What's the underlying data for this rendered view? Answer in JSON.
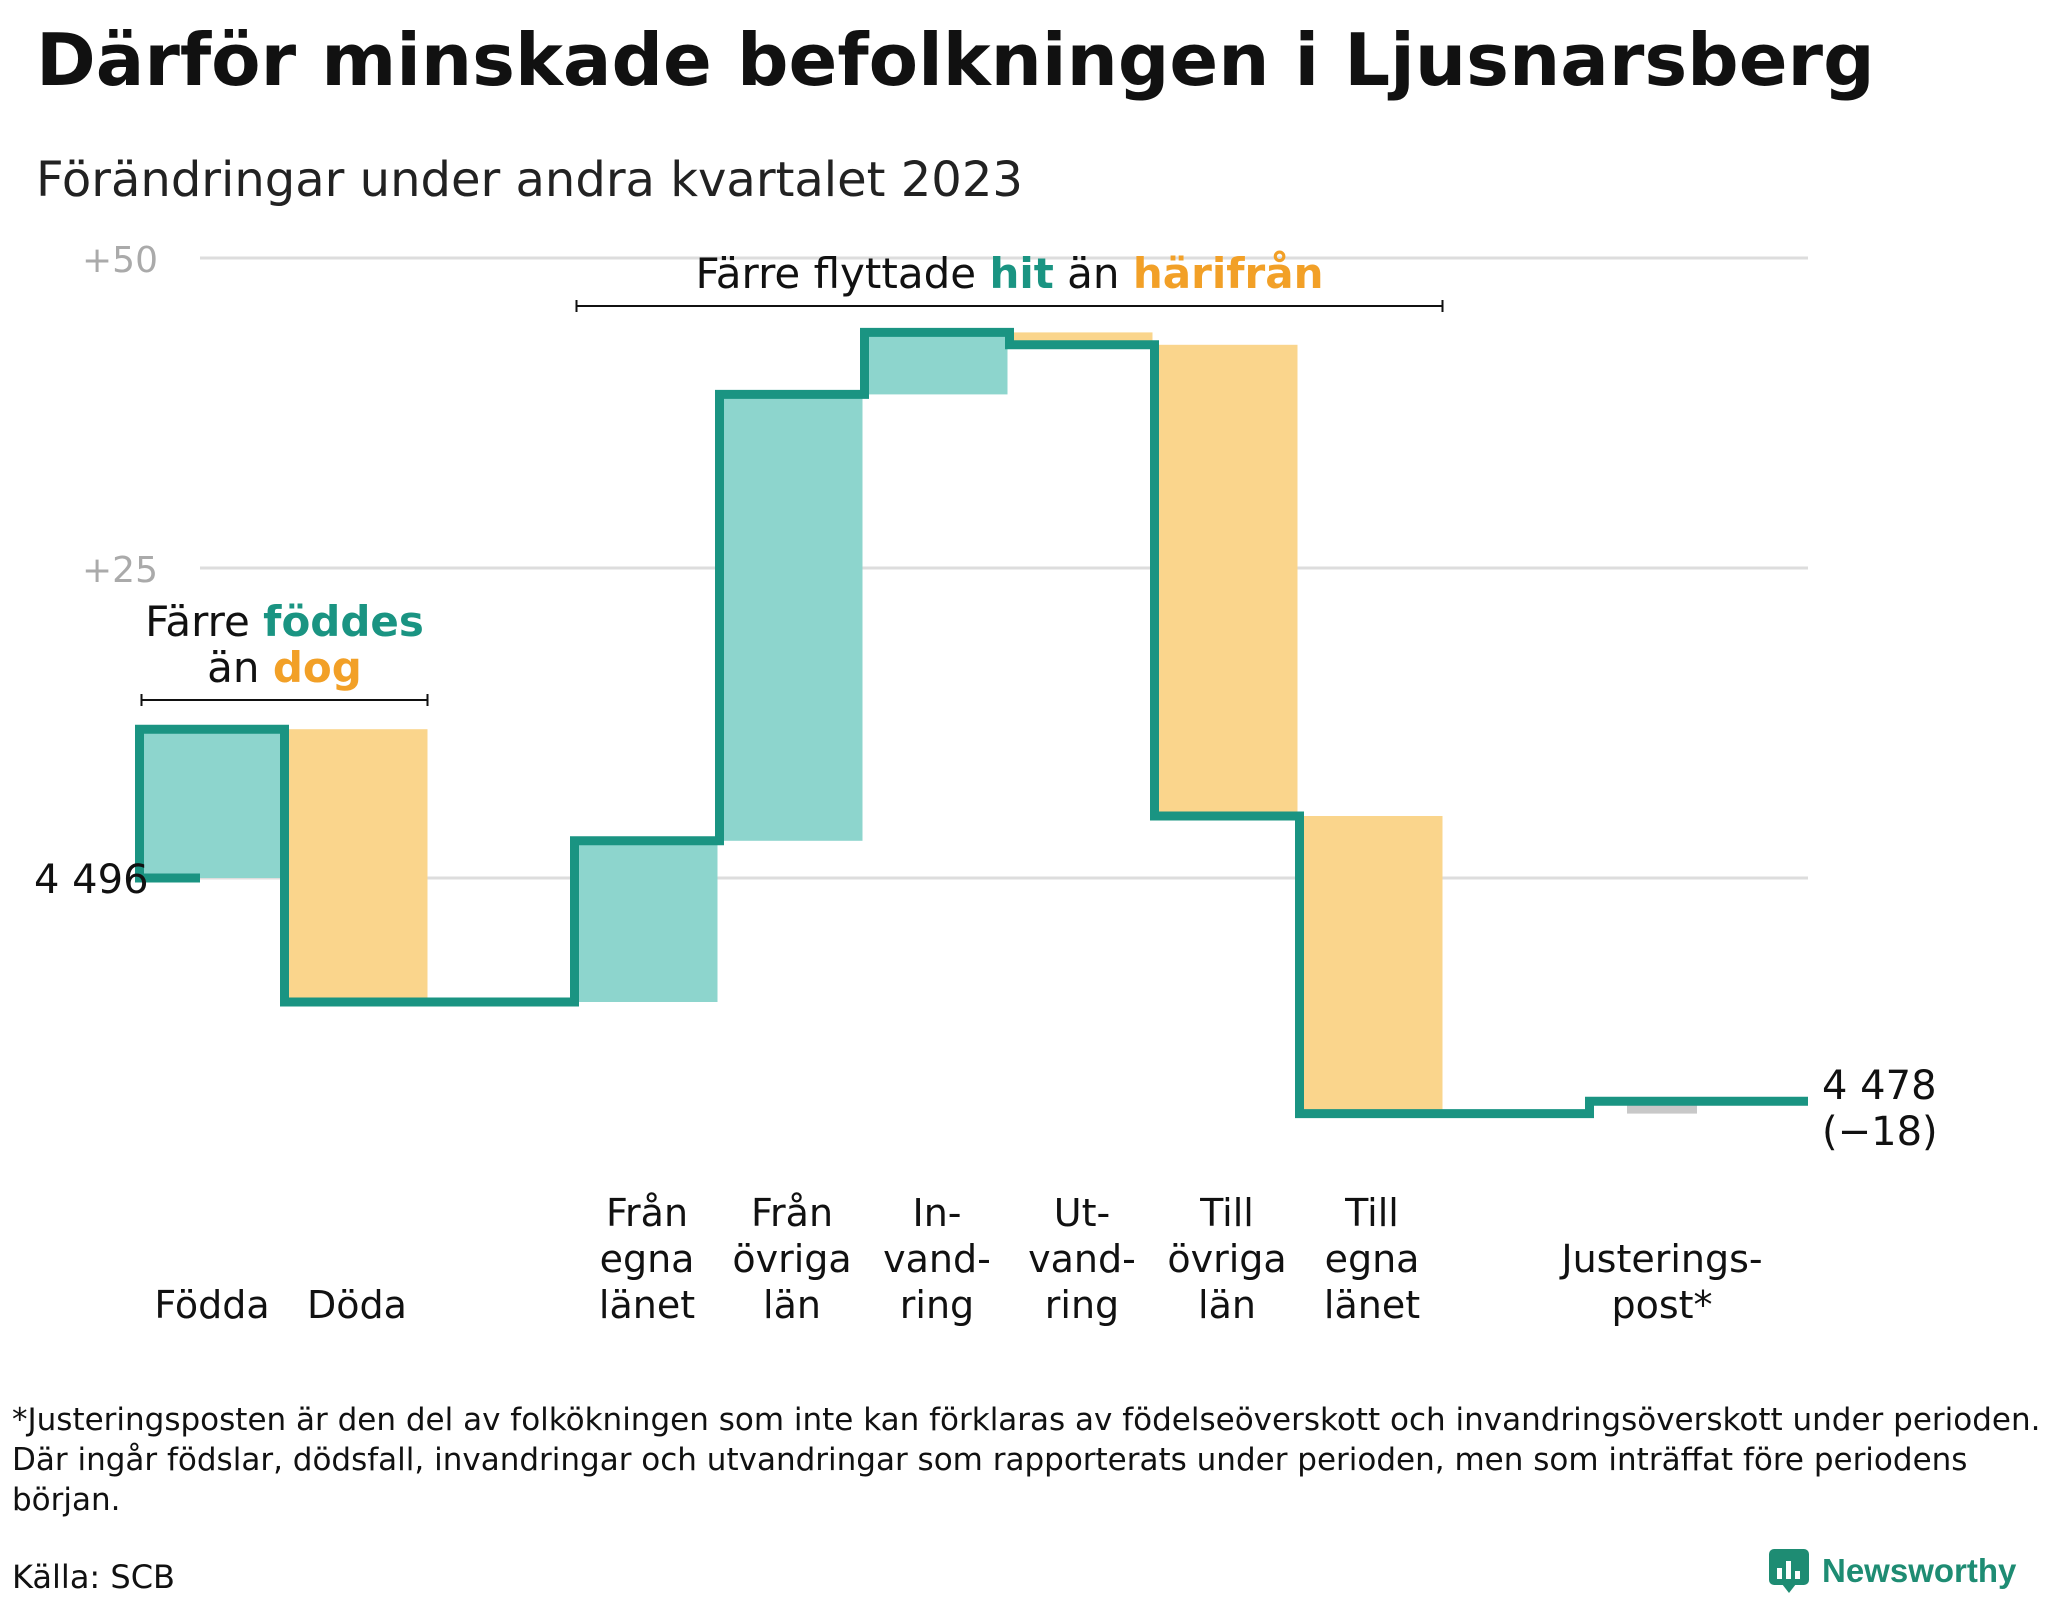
{
  "title": "Därför minskade befolkningen i Ljusnarsberg",
  "subtitle": "Förändringar under andra kvartalet 2023",
  "footnote": "*Justeringsposten är den del av folkökningen som inte kan förklaras av födelseöverskott och invandringsöverskott under perioden. Där ingår födslar, dödsfall, invandringar och utvandringar som rapporterats under perioden, men som inträffat före periodens början.",
  "source": "Källa: SCB",
  "brand": "Newsworthy",
  "colors": {
    "increase": "#8dd5cd",
    "decrease": "#fad58c",
    "adjustment": "#c8c8c8",
    "line": "#1a9482",
    "teal_text": "#1a9482",
    "orange_text": "#f2a027",
    "grid": "#dddddd",
    "tick_text": "#aaaaaa"
  },
  "chart_data": {
    "type": "waterfall",
    "start_value": 4496,
    "end_value": 4478,
    "start_label": "4  496",
    "end_label": "4 478",
    "end_change_label": "(−18)",
    "y_ticks": [
      {
        "value": 25,
        "label": "+25"
      },
      {
        "value": 50,
        "label": "+50"
      }
    ],
    "ylim": [
      -19,
      50
    ],
    "steps": [
      {
        "label": [
          "Födda"
        ],
        "change": 12,
        "kind": "increase"
      },
      {
        "label": [
          "Döda"
        ],
        "change": -22,
        "kind": "decrease"
      },
      {
        "label": [],
        "change": 0,
        "kind": "none"
      },
      {
        "label": [
          "Från",
          "egna",
          "länet"
        ],
        "change": 13,
        "kind": "increase"
      },
      {
        "label": [
          "Från",
          "övriga",
          "län"
        ],
        "change": 36,
        "kind": "increase"
      },
      {
        "label": [
          "In-",
          "vand-",
          "ring"
        ],
        "change": 5,
        "kind": "increase"
      },
      {
        "label": [
          "Ut-",
          "vand-",
          "ring"
        ],
        "change": -1,
        "kind": "decrease"
      },
      {
        "label": [
          "Till",
          "övriga",
          "län"
        ],
        "change": -38,
        "kind": "decrease"
      },
      {
        "label": [
          "Till",
          "egna",
          "länet"
        ],
        "change": -24,
        "kind": "decrease"
      },
      {
        "label": [],
        "change": 0,
        "kind": "none"
      },
      {
        "label": [
          "Justerings-",
          "post*"
        ],
        "change": 1,
        "kind": "adjustment"
      }
    ],
    "annotations": [
      {
        "from_step": 0,
        "to_step": 1,
        "lines": [
          [
            {
              "text": "Färre ",
              "style": "plain"
            },
            {
              "text": "föddes",
              "style": "teal"
            }
          ],
          [
            {
              "text": "än ",
              "style": "plain"
            },
            {
              "text": "dog",
              "style": "orange"
            }
          ]
        ]
      },
      {
        "from_step": 3,
        "to_step": 8,
        "lines": [
          [
            {
              "text": "Färre flyttade ",
              "style": "plain"
            },
            {
              "text": "hit",
              "style": "teal"
            },
            {
              "text": " än ",
              "style": "plain"
            },
            {
              "text": "härifrån",
              "style": "orange"
            }
          ]
        ]
      }
    ]
  }
}
